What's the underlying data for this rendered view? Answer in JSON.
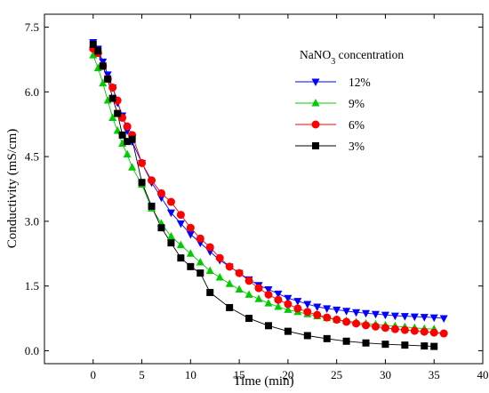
{
  "chart_data": {
    "type": "line",
    "xlabel": "Time (min)",
    "ylabel": "Conductivity (mS/cm)",
    "xlim": [
      -5,
      40
    ],
    "ylim": [
      -0.3,
      7.8
    ],
    "x_ticks": [
      0,
      5,
      10,
      15,
      20,
      25,
      30,
      35,
      40
    ],
    "y_ticks": [
      0.0,
      1.5,
      3.0,
      4.5,
      6.0,
      7.5
    ],
    "x_tick_labels": [
      "0",
      "5",
      "10",
      "15",
      "20",
      "25",
      "30",
      "35",
      "40"
    ],
    "y_tick_labels": [
      "0.0",
      "1.5",
      "3.0",
      "4.5",
      "6.0",
      "7.5"
    ],
    "legend": {
      "title_main": "NaNO",
      "title_sub": "3",
      "title_rest": " concentration",
      "placement": "top-right"
    },
    "series": [
      {
        "name": "12%",
        "color": "#0000ff",
        "marker": "triangle-down",
        "x": [
          0,
          0.5,
          1,
          1.5,
          2,
          2.5,
          3,
          3.5,
          4,
          5,
          6,
          7,
          8,
          9,
          10,
          11,
          12,
          13,
          14,
          15,
          16,
          17,
          18,
          19,
          20,
          21,
          22,
          23,
          24,
          25,
          26,
          27,
          28,
          29,
          30,
          31,
          32,
          33,
          34,
          35,
          36
        ],
        "y": [
          7.15,
          7.0,
          6.7,
          6.4,
          6.1,
          5.75,
          5.45,
          5.1,
          4.85,
          4.35,
          3.9,
          3.55,
          3.2,
          2.95,
          2.7,
          2.5,
          2.3,
          2.1,
          1.95,
          1.8,
          1.65,
          1.52,
          1.42,
          1.32,
          1.22,
          1.15,
          1.08,
          1.02,
          0.98,
          0.95,
          0.92,
          0.89,
          0.87,
          0.85,
          0.83,
          0.81,
          0.8,
          0.79,
          0.78,
          0.77,
          0.75
        ]
      },
      {
        "name": "9%",
        "color": "#00cc00",
        "marker": "triangle-up",
        "x": [
          0,
          0.5,
          1,
          1.5,
          2,
          2.5,
          3,
          3.5,
          4,
          5,
          6,
          7,
          8,
          9,
          10,
          11,
          12,
          13,
          14,
          15,
          16,
          17,
          18,
          19,
          20,
          21,
          22,
          23,
          24,
          25,
          26,
          27,
          28,
          29,
          30,
          31,
          32,
          33,
          34,
          35
        ],
        "y": [
          6.85,
          6.55,
          6.2,
          5.8,
          5.4,
          5.1,
          4.8,
          4.55,
          4.25,
          3.85,
          3.3,
          2.95,
          2.65,
          2.45,
          2.25,
          2.05,
          1.85,
          1.7,
          1.55,
          1.42,
          1.3,
          1.2,
          1.1,
          1.02,
          0.95,
          0.9,
          0.85,
          0.8,
          0.76,
          0.72,
          0.69,
          0.66,
          0.63,
          0.61,
          0.59,
          0.57,
          0.55,
          0.53,
          0.51,
          0.5
        ]
      },
      {
        "name": "6%",
        "color": "#ff0000",
        "marker": "circle",
        "x": [
          0,
          0.5,
          1,
          1.5,
          2,
          2.5,
          3,
          3.5,
          4,
          5,
          6,
          7,
          8,
          9,
          10,
          11,
          12,
          13,
          14,
          15,
          16,
          17,
          18,
          19,
          20,
          21,
          22,
          23,
          24,
          25,
          26,
          27,
          28,
          29,
          30,
          31,
          32,
          33,
          34,
          35,
          36
        ],
        "y": [
          7.0,
          6.9,
          6.6,
          6.3,
          6.1,
          5.8,
          5.4,
          5.2,
          5.0,
          4.35,
          3.95,
          3.65,
          3.45,
          3.15,
          2.85,
          2.6,
          2.4,
          2.15,
          1.95,
          1.8,
          1.62,
          1.45,
          1.3,
          1.18,
          1.08,
          0.98,
          0.9,
          0.83,
          0.77,
          0.72,
          0.67,
          0.63,
          0.59,
          0.56,
          0.53,
          0.5,
          0.48,
          0.46,
          0.44,
          0.42,
          0.4
        ]
      },
      {
        "name": "3%",
        "color": "#000000",
        "marker": "square",
        "x": [
          0,
          0.5,
          1,
          1.5,
          2,
          2.5,
          3,
          3.5,
          4,
          5,
          6,
          7,
          8,
          9,
          10,
          11,
          12,
          14,
          16,
          18,
          20,
          22,
          24,
          26,
          28,
          30,
          32,
          34,
          35
        ],
        "y": [
          7.1,
          6.95,
          6.6,
          6.3,
          5.85,
          5.5,
          5.0,
          4.85,
          4.9,
          3.9,
          3.35,
          2.85,
          2.5,
          2.15,
          1.95,
          1.8,
          1.35,
          1.0,
          0.75,
          0.58,
          0.45,
          0.35,
          0.28,
          0.22,
          0.18,
          0.15,
          0.13,
          0.11,
          0.1
        ]
      }
    ]
  }
}
